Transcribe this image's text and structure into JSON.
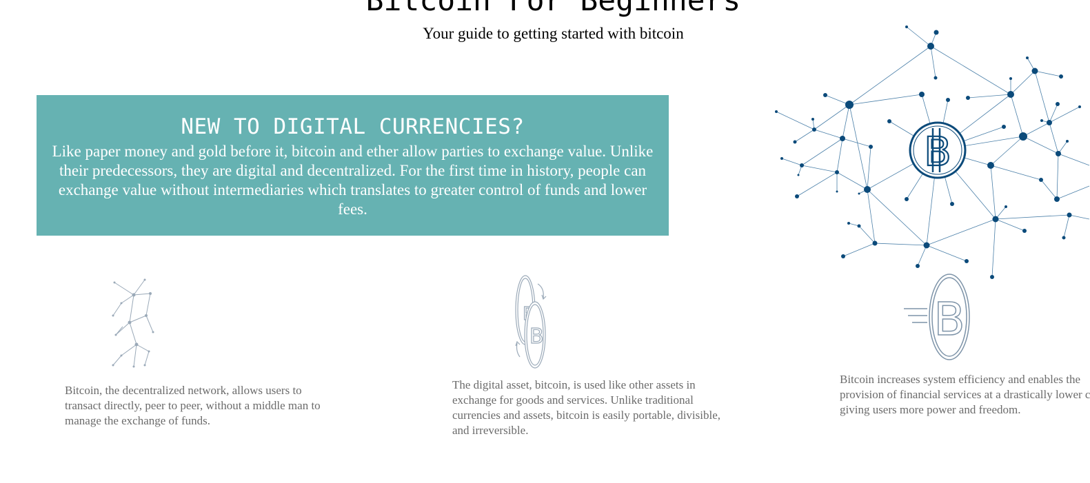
{
  "header": {
    "title": "Bitcoin For Beginners",
    "subtitle": "Your guide to getting started with bitcoin"
  },
  "hero": {
    "heading": "NEW TO DIGITAL CURRENCIES?",
    "body": "Like paper money and gold before it, bitcoin and ether allow parties to exchange value. Unlike their predecessors, they are digital and decentralized. For the first time in history, people can exchange value without intermediaries which translates to greater control of funds and lower fees."
  },
  "features": [
    {
      "icon": "network-icon",
      "text": "Bitcoin, the decentralized network, allows users to transact directly, peer to peer, without a middle man to manage the exchange of funds."
    },
    {
      "icon": "coins-exchange-icon",
      "text": "The digital asset, bitcoin, is used like other assets in exchange for goods and services. Unlike traditional currencies and assets, bitcoin is easily portable, divisible, and irreversible."
    },
    {
      "icon": "fast-bitcoin-icon",
      "text": "Bitcoin increases system efficiency and enables the provision of financial services at a drastically lower cost, giving users more power and freedom."
    }
  ],
  "colors": {
    "banner": "#66b2b2",
    "network": "#0b4a7a",
    "feature_text": "#6b6b6b",
    "icon_stroke": "#9aa9b8"
  }
}
